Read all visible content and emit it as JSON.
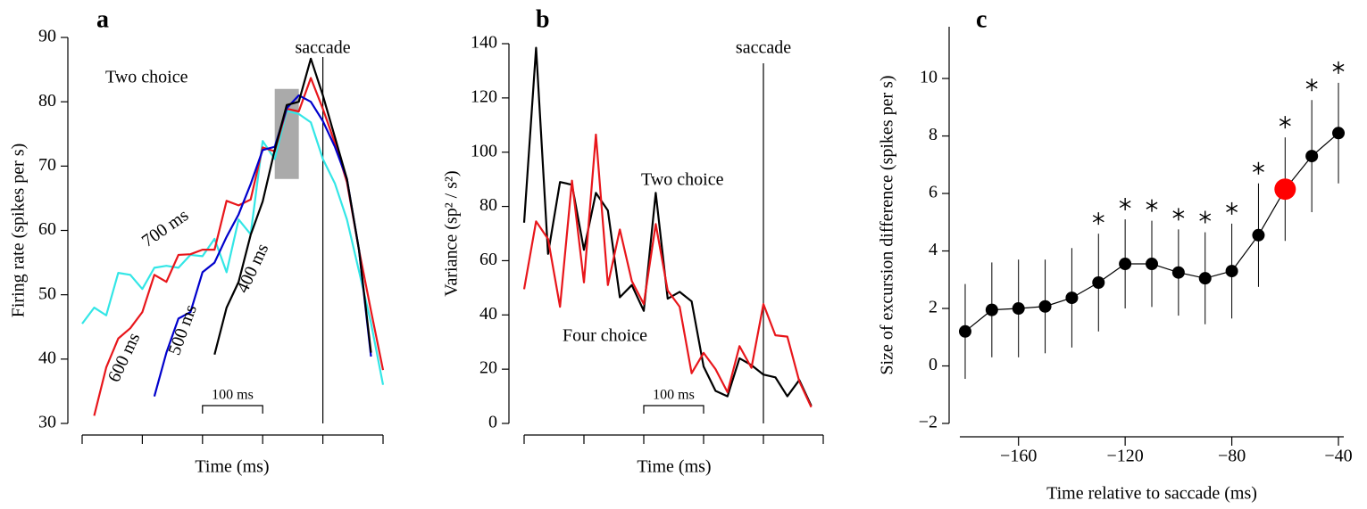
{
  "chart_data": [
    {
      "type": "line",
      "panel": "a",
      "y_label": "Firing rate (spikes per s)",
      "x_label": "Time (ms)",
      "annotation": "Two choice",
      "vline": {
        "x": 0,
        "label": "saccade"
      },
      "highlight": {
        "x": [
          -80,
          -40
        ],
        "y": [
          68,
          82
        ],
        "color": "#aaaaaa"
      },
      "scale_bar": {
        "x": [
          -200,
          -100
        ],
        "label": "100 ms"
      },
      "xlim": [
        -400,
        100
      ],
      "xticks": [
        -400,
        -300,
        -200,
        -100,
        0,
        100
      ],
      "ylim": [
        30,
        90
      ],
      "yticks": [
        30,
        40,
        50,
        60,
        70,
        80,
        90
      ],
      "x": [
        -400,
        -380,
        -360,
        -340,
        -320,
        -300,
        -280,
        -260,
        -240,
        -220,
        -200,
        -180,
        -160,
        -140,
        -120,
        -100,
        -80,
        -60,
        -40,
        -20,
        0,
        20,
        40,
        60,
        80,
        100
      ],
      "series": [
        {
          "name": "700 ms",
          "color": "#33e6e6",
          "values": [
            45.5,
            48,
            46.8,
            53.4,
            53.1,
            50.9,
            54.2,
            54.5,
            54.2,
            56.2,
            56.0,
            58.7,
            53.5,
            61.7,
            59.4,
            73.9,
            71.1,
            78.6,
            78.1,
            76.8,
            71.1,
            67.3,
            61.7,
            53.7,
            45.6,
            36.0
          ]
        },
        {
          "name": "600 ms",
          "color": "#e8161b",
          "values": [
            null,
            31.2,
            38.7,
            43.2,
            44.8,
            47.3,
            53.1,
            52.0,
            56.2,
            56.3,
            57.0,
            57.0,
            64.6,
            63.9,
            64.8,
            72.9,
            72.3,
            78.9,
            78.5,
            83.7,
            78.9,
            73.6,
            67.5,
            57.0,
            47.5,
            38.3
          ]
        },
        {
          "name": "500 ms",
          "color": "#0000cc",
          "values": [
            null,
            null,
            null,
            null,
            null,
            null,
            34.2,
            41.0,
            46.3,
            47.3,
            53.5,
            55.0,
            59.0,
            62.5,
            67.2,
            72.5,
            73.0,
            79.0,
            81.0,
            80.0,
            77.0,
            73.0,
            68.0,
            57.0,
            40.4,
            null
          ]
        },
        {
          "name": "400 ms",
          "color": "#000000",
          "values": [
            null,
            null,
            null,
            null,
            null,
            null,
            null,
            null,
            null,
            null,
            null,
            40.7,
            48.0,
            52.0,
            59.3,
            64.5,
            72.5,
            79.5,
            80.0,
            86.7,
            81.0,
            74.5,
            68.0,
            57.0,
            41.0,
            null
          ]
        }
      ]
    },
    {
      "type": "line",
      "panel": "b",
      "y_label": "Variance (sp² / s²)",
      "x_label": "Time (ms)",
      "vline": {
        "x": 0,
        "label": "saccade"
      },
      "scale_bar": {
        "x": [
          -200,
          -100
        ],
        "label": "100 ms"
      },
      "xlim": [
        -400,
        100
      ],
      "xticks": [
        -400,
        -300,
        -200,
        -100,
        0,
        100
      ],
      "ylim": [
        0,
        140
      ],
      "yticks": [
        0,
        20,
        40,
        60,
        80,
        100,
        120,
        140
      ],
      "x": [
        -400,
        -380,
        -360,
        -340,
        -320,
        -300,
        -280,
        -260,
        -240,
        -220,
        -200,
        -180,
        -160,
        -140,
        -120,
        -100,
        -80,
        -60,
        -40,
        -20,
        0,
        20,
        40,
        60,
        80
      ],
      "series": [
        {
          "name": "Two choice",
          "color": "#000000",
          "values": [
            74,
            138.5,
            62.5,
            89,
            88,
            64,
            85,
            78.5,
            46.5,
            51,
            41.5,
            85,
            46,
            48.5,
            45,
            21,
            12,
            10,
            24,
            21.5,
            18,
            17,
            10,
            16,
            6.5
          ]
        },
        {
          "name": "Four choice",
          "color": "#e8161b",
          "values": [
            49.5,
            74.5,
            68,
            43,
            89.5,
            52,
            106.5,
            51,
            71.5,
            52.5,
            44,
            73.5,
            49,
            43,
            18.5,
            26,
            20,
            11.5,
            28.5,
            20.5,
            44,
            32.5,
            32,
            15.5,
            6
          ]
        }
      ]
    },
    {
      "type": "errorbar",
      "panel": "c",
      "y_label": "Size of excursion difference (spikes per s)",
      "x_label": "Time relative to saccade (ms)",
      "xlim": [
        -182,
        -38
      ],
      "xticks": [
        {
          "value": -160,
          "label": "−160"
        },
        {
          "value": -120,
          "label": "−120"
        },
        {
          "value": -80,
          "label": "−80"
        },
        {
          "value": -40,
          "label": "−40"
        }
      ],
      "ylim": [
        -2,
        11.8
      ],
      "yticks": [
        {
          "value": -2,
          "label": "−2"
        },
        0,
        2,
        4,
        6,
        8,
        10
      ],
      "x": [
        -180,
        -170,
        -160,
        -150,
        -140,
        -130,
        -120,
        -110,
        -100,
        -90,
        -80,
        -70,
        -60,
        -50,
        -40
      ],
      "values": [
        1.2,
        1.95,
        2.0,
        2.07,
        2.37,
        2.9,
        3.55,
        3.55,
        3.25,
        3.05,
        3.3,
        4.55,
        6.15,
        7.3,
        8.1
      ],
      "errors": [
        1.65,
        1.65,
        1.7,
        1.63,
        1.73,
        1.7,
        1.55,
        1.5,
        1.5,
        1.6,
        1.65,
        1.8,
        1.8,
        1.95,
        1.75
      ],
      "significant": [
        false,
        false,
        false,
        false,
        false,
        true,
        true,
        true,
        true,
        true,
        true,
        true,
        true,
        true,
        true
      ],
      "point_colors": [
        "#000000",
        "#000000",
        "#000000",
        "#000000",
        "#000000",
        "#000000",
        "#000000",
        "#000000",
        "#000000",
        "#000000",
        "#000000",
        "#000000",
        "#ff0000",
        "#000000",
        "#000000"
      ],
      "line_color": "#000000"
    }
  ]
}
